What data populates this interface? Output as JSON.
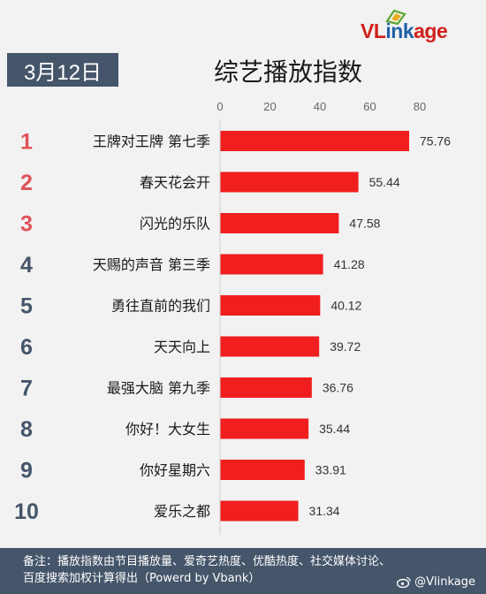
{
  "brand": {
    "name_prefix": "VL",
    "name_mid": "ink",
    "name_suffix": "age",
    "colors": {
      "vl": "#d0201b",
      "ink": "#1f5fa8",
      "age": "#d0201b",
      "mark": "#5aa531"
    }
  },
  "date": "3月12日",
  "title": "综艺播放指数",
  "chart_data": {
    "type": "bar",
    "orientation": "horizontal",
    "categories": [
      "王牌对王牌 第七季",
      "春天花会开",
      "闪光的乐队",
      "天赐的声音 第三季",
      "勇往直前的我们",
      "天天向上",
      "最强大脑 第九季",
      "你好！大女生",
      "你好星期六",
      "爱乐之都"
    ],
    "ranks": [
      "1",
      "2",
      "3",
      "4",
      "5",
      "6",
      "7",
      "8",
      "9",
      "10"
    ],
    "values": [
      75.76,
      55.44,
      47.58,
      41.28,
      40.12,
      39.72,
      36.76,
      35.44,
      33.91,
      31.34
    ],
    "value_labels": [
      "75.76",
      "55.44",
      "47.58",
      "41.28",
      "40.12",
      "39.72",
      "36.76",
      "35.44",
      "33.91",
      "31.34"
    ],
    "x_ticks": [
      "0",
      "20",
      "40",
      "60",
      "80"
    ],
    "xlim": [
      0,
      80
    ],
    "axis_position": "top",
    "grid": false,
    "bar_color": "#f01e1e",
    "rank_colors": {
      "top3": "#e0525a",
      "rest": "#45556a"
    }
  },
  "footer": {
    "note_line1": "备注：播放指数由节目播放量、爱奇艺热度、优酷热度、社交媒体讨论、",
    "note_line2": "百度搜索加权计算得出（Powerd by Vbank）",
    "handle": "@Vlinkage"
  }
}
